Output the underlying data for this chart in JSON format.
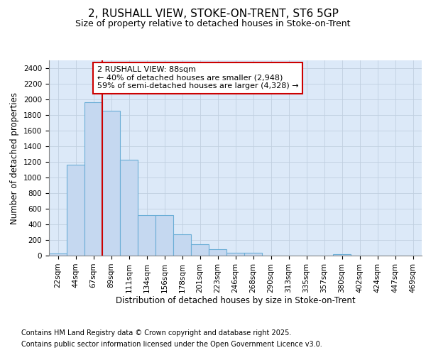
{
  "title_line1": "2, RUSHALL VIEW, STOKE-ON-TRENT, ST6 5GP",
  "title_line2": "Size of property relative to detached houses in Stoke-on-Trent",
  "xlabel": "Distribution of detached houses by size in Stoke-on-Trent",
  "ylabel": "Number of detached properties",
  "categories": [
    "22sqm",
    "44sqm",
    "67sqm",
    "89sqm",
    "111sqm",
    "134sqm",
    "156sqm",
    "178sqm",
    "201sqm",
    "223sqm",
    "246sqm",
    "268sqm",
    "290sqm",
    "313sqm",
    "335sqm",
    "357sqm",
    "380sqm",
    "402sqm",
    "424sqm",
    "447sqm",
    "469sqm"
  ],
  "values": [
    30,
    1160,
    1960,
    1850,
    1230,
    520,
    520,
    275,
    150,
    85,
    35,
    40,
    0,
    0,
    0,
    0,
    15,
    0,
    0,
    0,
    0
  ],
  "bar_color": "#c5d8f0",
  "bar_edge_color": "#6baed6",
  "vline_color": "#cc0000",
  "vline_x_idx": 3,
  "annotation_text": "2 RUSHALL VIEW: 88sqm\n← 40% of detached houses are smaller (2,948)\n59% of semi-detached houses are larger (4,328) →",
  "annotation_box_facecolor": "#ffffff",
  "annotation_box_edgecolor": "#cc0000",
  "ylim": [
    0,
    2500
  ],
  "yticks": [
    0,
    200,
    400,
    600,
    800,
    1000,
    1200,
    1400,
    1600,
    1800,
    2000,
    2200,
    2400
  ],
  "grid_color": "#c0cfe0",
  "plot_bg_color": "#dce9f8",
  "fig_bg_color": "#ffffff",
  "title_fontsize": 11,
  "subtitle_fontsize": 9,
  "axis_label_fontsize": 8.5,
  "tick_fontsize": 7.5,
  "annotation_fontsize": 8,
  "footer_fontsize": 7,
  "footer_line1": "Contains HM Land Registry data © Crown copyright and database right 2025.",
  "footer_line2": "Contains public sector information licensed under the Open Government Licence v3.0."
}
